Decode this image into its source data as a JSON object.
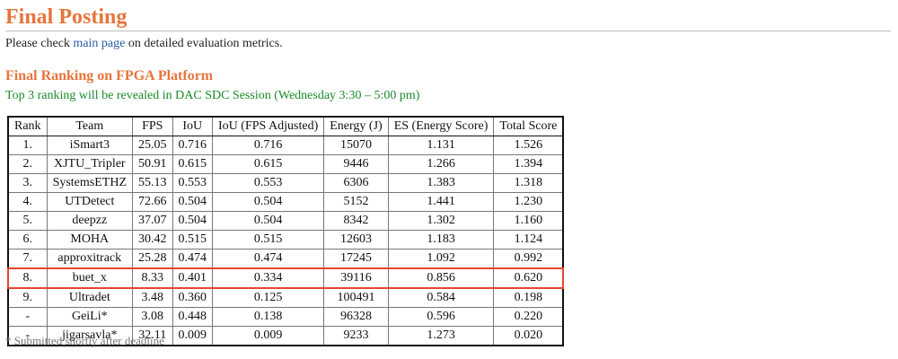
{
  "page": {
    "title": "Final Posting",
    "intro": {
      "before": "Please check ",
      "link": "main page",
      "after": " on detailed evaluation metrics."
    },
    "section_title": "Final Ranking on FPGA Platform",
    "session_note": "Top 3 ranking will be revealed in DAC SDC Session (Wednesday 3:30 – 5:00 pm)",
    "footnote": "* Submitted shortly after deadline"
  },
  "table": {
    "headers": [
      "Rank",
      "Team",
      "FPS",
      "IoU",
      "IoU (FPS Adjusted)",
      "Energy (J)",
      "ES (Energy Score)",
      "Total Score"
    ],
    "rows": [
      [
        "1.",
        "iSmart3",
        "25.05",
        "0.716",
        "0.716",
        "15070",
        "1.131",
        "1.526"
      ],
      [
        "2.",
        "XJTU_Tripler",
        "50.91",
        "0.615",
        "0.615",
        "9446",
        "1.266",
        "1.394"
      ],
      [
        "3.",
        "SystemsETHZ",
        "55.13",
        "0.553",
        "0.553",
        "6306",
        "1.383",
        "1.318"
      ],
      [
        "4.",
        "UTDetect",
        "72.66",
        "0.504",
        "0.504",
        "5152",
        "1.441",
        "1.230"
      ],
      [
        "5.",
        "deepzz",
        "37.07",
        "0.504",
        "0.504",
        "8342",
        "1.302",
        "1.160"
      ],
      [
        "6.",
        "MOHA",
        "30.42",
        "0.515",
        "0.515",
        "12603",
        "1.183",
        "1.124"
      ],
      [
        "7.",
        "approxitrack",
        "25.28",
        "0.474",
        "0.474",
        "17245",
        "1.092",
        "0.992"
      ],
      [
        "8.",
        "buet_x",
        "8.33",
        "0.401",
        "0.334",
        "39116",
        "0.856",
        "0.620"
      ],
      [
        "9.",
        "Ultradet",
        "3.48",
        "0.360",
        "0.125",
        "100491",
        "0.584",
        "0.198"
      ],
      [
        "-",
        "GeiLi*",
        "3.08",
        "0.448",
        "0.138",
        "96328",
        "0.596",
        "0.220"
      ],
      [
        "-",
        "jigarsavla*",
        "32.11",
        "0.009",
        "0.009",
        "9233",
        "1.273",
        "0.020"
      ]
    ],
    "highlighted_team": "buet_x"
  },
  "colors": {
    "heading": "#e8743b",
    "link": "#2b5da8",
    "note": "#1a8a2a",
    "highlight_border": "#e8452e",
    "footnote": "#777777"
  }
}
